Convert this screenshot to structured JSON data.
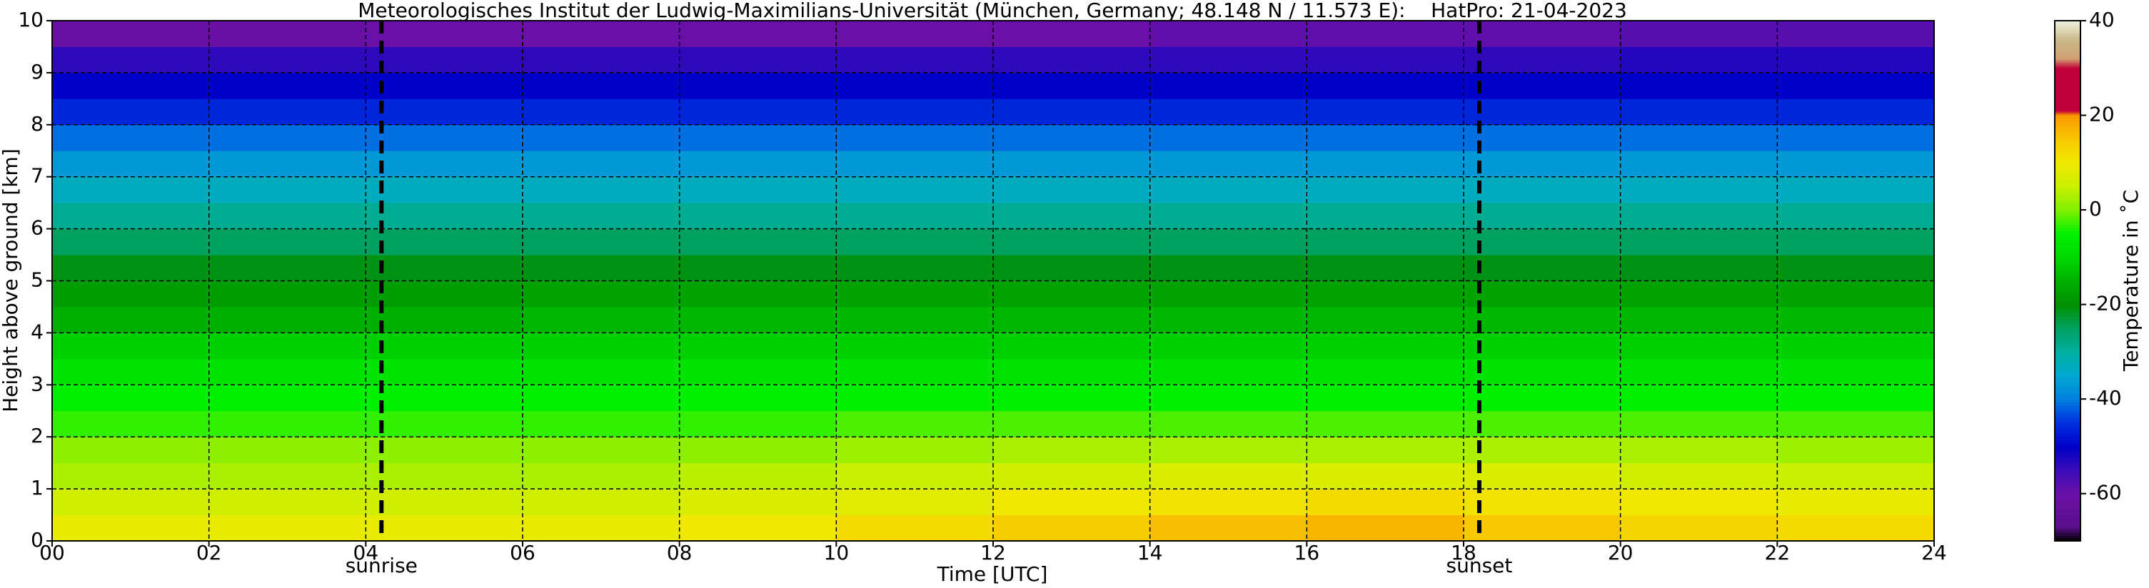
{
  "chart_data": {
    "type": "heatmap",
    "title": "Meteorologisches Institut der Ludwig-Maximilians-Universität (München, Germany; 48.148 N / 11.573 E):    HatPro: 21-04-2023",
    "xlabel": "Time [UTC]",
    "ylabel": "Height above ground [km]",
    "colorbar_label": "Temperature in ˚C",
    "x": [
      0,
      2,
      4,
      6,
      8,
      10,
      12,
      14,
      16,
      18,
      20,
      22,
      24
    ],
    "y": [
      0,
      0.5,
      1,
      1.5,
      2,
      2.5,
      3,
      3.5,
      4,
      4.5,
      5,
      5.5,
      6,
      6.5,
      7,
      7.5,
      8,
      8.5,
      9,
      9.5,
      10
    ],
    "values": [
      [
        9,
        9,
        9,
        9,
        10,
        12,
        14,
        16,
        17,
        15,
        13,
        12
      ],
      [
        6,
        6,
        6,
        6,
        7,
        8,
        10,
        11,
        12,
        11,
        10,
        9
      ],
      [
        3,
        3,
        3,
        3,
        4,
        5,
        6,
        7,
        7,
        7,
        6,
        5
      ],
      [
        1,
        1,
        1,
        1,
        1,
        2,
        3,
        3,
        3,
        3,
        3,
        2
      ],
      [
        -3,
        -3,
        -3,
        -3,
        -3,
        -2,
        -2,
        -2,
        -2,
        -2,
        -2,
        -2
      ],
      [
        -5,
        -5,
        -5,
        -5,
        -5,
        -5,
        -5,
        -5,
        -5,
        -5,
        -5,
        -5
      ],
      [
        -8,
        -8,
        -8,
        -8,
        -8,
        -8,
        -8,
        -8,
        -8,
        -8,
        -8,
        -8
      ],
      [
        -11,
        -11,
        -11,
        -11,
        -11,
        -11,
        -11,
        -11,
        -11,
        -11,
        -11,
        -11
      ],
      [
        -15,
        -15,
        -15,
        -14,
        -14,
        -14,
        -14,
        -14,
        -14,
        -14,
        -14,
        -14
      ],
      [
        -18,
        -18,
        -18,
        -17,
        -17,
        -17,
        -17,
        -17,
        -17,
        -17,
        -17,
        -17
      ],
      [
        -21,
        -21,
        -21,
        -21,
        -21,
        -21,
        -21,
        -21,
        -21,
        -21,
        -21,
        -21
      ],
      [
        -25,
        -25,
        -25,
        -25,
        -25,
        -25,
        -25,
        -25,
        -25,
        -25,
        -25,
        -25
      ],
      [
        -29,
        -29,
        -29,
        -29,
        -29,
        -29,
        -29,
        -29,
        -29,
        -29,
        -29,
        -29
      ],
      [
        -33,
        -33,
        -33,
        -33,
        -33,
        -33,
        -33,
        -33,
        -33,
        -33,
        -33,
        -33
      ],
      [
        -37,
        -37,
        -37,
        -37,
        -37,
        -37,
        -37,
        -37,
        -37,
        -37,
        -37,
        -37
      ],
      [
        -41,
        -41,
        -41,
        -41,
        -41,
        -41,
        -41,
        -41,
        -41,
        -41,
        -41,
        -41
      ],
      [
        -46,
        -46,
        -46,
        -46,
        -46,
        -46,
        -46,
        -46,
        -46,
        -46,
        -46,
        -46
      ],
      [
        -50,
        -50,
        -50,
        -50,
        -50,
        -50,
        -50,
        -50,
        -50,
        -50,
        -50,
        -50
      ],
      [
        -54,
        -54,
        -54,
        -54,
        -54,
        -54,
        -54,
        -54,
        -54,
        -54,
        -53,
        -53
      ],
      [
        -61,
        -61,
        -60,
        -60,
        -60,
        -60,
        -60,
        -59,
        -59,
        -59,
        -58,
        -58
      ]
    ],
    "xlim": [
      0,
      24
    ],
    "ylim": [
      0,
      10
    ],
    "xticks": [
      {
        "value": 0,
        "label": "00"
      },
      {
        "value": 2,
        "label": "02"
      },
      {
        "value": 4,
        "label": "04"
      },
      {
        "value": 6,
        "label": "06"
      },
      {
        "value": 8,
        "label": "08"
      },
      10,
      12,
      14,
      16,
      18,
      20,
      22,
      24
    ],
    "yticks": [
      0,
      1,
      2,
      3,
      4,
      5,
      6,
      7,
      8,
      9,
      10
    ],
    "clim": [
      -70,
      40
    ],
    "cticks": [
      -60,
      -40,
      -20,
      0,
      20,
      40
    ],
    "colorscale": [
      [
        -70,
        "#000000"
      ],
      [
        -67,
        "#5a0f8a"
      ],
      [
        -60,
        "#6a10a8"
      ],
      [
        -55,
        "#3a0cb8"
      ],
      [
        -50,
        "#0000c8"
      ],
      [
        -45,
        "#0030e0"
      ],
      [
        -40,
        "#0080e0"
      ],
      [
        -35,
        "#00a8d0"
      ],
      [
        -30,
        "#00b0a0"
      ],
      [
        -25,
        "#00a060"
      ],
      [
        -20,
        "#009000"
      ],
      [
        -15,
        "#00b000"
      ],
      [
        -10,
        "#00d800"
      ],
      [
        -5,
        "#00f000"
      ],
      [
        0,
        "#80f000"
      ],
      [
        5,
        "#c8f000"
      ],
      [
        10,
        "#f0e800"
      ],
      [
        15,
        "#f8c800"
      ],
      [
        20,
        "#f89800"
      ],
      [
        21,
        "#c0003a"
      ],
      [
        30,
        "#c0003a"
      ],
      [
        32,
        "#d0a070"
      ],
      [
        36,
        "#c8b888"
      ],
      [
        40,
        "#f0f0e0"
      ]
    ],
    "grid": true,
    "annotations": [
      {
        "label": "sunrise",
        "x": 4.2
      },
      {
        "label": "sunset",
        "x": 18.2
      }
    ]
  }
}
